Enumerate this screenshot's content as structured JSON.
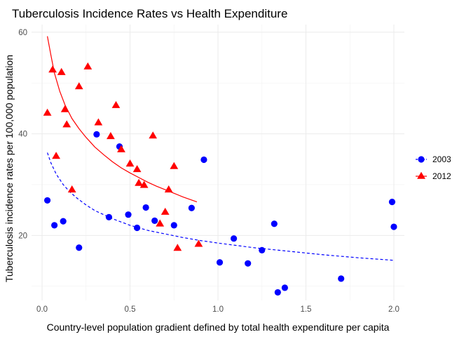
{
  "chart_data": {
    "type": "scatter",
    "title": "Tuberculosis Incidence Rates vs Health Expenditure",
    "xlabel": "Country-level population gradient defined by total health expenditure per capita",
    "ylabel": "Tuberculosis incidence rates per 100,000 population",
    "xlim": [
      -0.06,
      2.06
    ],
    "ylim": [
      7.2,
      61.5
    ],
    "x_ticks": [
      0.0,
      0.5,
      1.0,
      1.5,
      2.0
    ],
    "x_tick_labels": [
      "0.0",
      "0.5",
      "1.0",
      "1.5",
      "2.0"
    ],
    "y_ticks": [
      20,
      40,
      60
    ],
    "y_tick_labels": [
      "20",
      "40",
      "60"
    ],
    "grid": true,
    "legend_position": "right",
    "series": [
      {
        "name": "2003",
        "color": "#0000ff",
        "marker": "circle",
        "line_style": "dashed",
        "points": [
          [
            0.03,
            26.9
          ],
          [
            0.07,
            22.0
          ],
          [
            0.12,
            22.8
          ],
          [
            0.21,
            17.6
          ],
          [
            0.31,
            39.9
          ],
          [
            0.38,
            23.6
          ],
          [
            0.44,
            37.5
          ],
          [
            0.49,
            24.1
          ],
          [
            0.54,
            21.5
          ],
          [
            0.59,
            25.5
          ],
          [
            0.64,
            22.9
          ],
          [
            0.75,
            22.0
          ],
          [
            0.85,
            25.4
          ],
          [
            0.92,
            34.9
          ],
          [
            1.01,
            14.7
          ],
          [
            1.09,
            19.4
          ],
          [
            1.17,
            14.5
          ],
          [
            1.25,
            17.1
          ],
          [
            1.32,
            22.3
          ],
          [
            1.34,
            8.8
          ],
          [
            1.38,
            9.7
          ],
          [
            1.7,
            11.5
          ],
          [
            1.99,
            26.6
          ],
          [
            2.0,
            21.7
          ]
        ],
        "fit": [
          [
            0.03,
            36.3
          ],
          [
            0.05,
            34.3
          ],
          [
            0.08,
            32.1
          ],
          [
            0.12,
            30.0
          ],
          [
            0.16,
            28.5
          ],
          [
            0.2,
            27.3
          ],
          [
            0.25,
            26.0
          ],
          [
            0.3,
            24.9
          ],
          [
            0.4,
            23.3
          ],
          [
            0.5,
            22.0
          ],
          [
            0.6,
            21.0
          ],
          [
            0.7,
            20.3
          ],
          [
            0.8,
            19.6
          ],
          [
            0.9,
            19.0
          ],
          [
            1.0,
            18.5
          ],
          [
            1.2,
            17.6
          ],
          [
            1.4,
            16.9
          ],
          [
            1.6,
            16.2
          ],
          [
            1.8,
            15.6
          ],
          [
            2.0,
            15.1
          ]
        ]
      },
      {
        "name": "2012",
        "color": "#ff0000",
        "marker": "triangle",
        "line_style": "solid",
        "points": [
          [
            0.03,
            44.1
          ],
          [
            0.06,
            52.6
          ],
          [
            0.08,
            35.6
          ],
          [
            0.11,
            52.1
          ],
          [
            0.13,
            44.8
          ],
          [
            0.14,
            41.8
          ],
          [
            0.17,
            29.0
          ],
          [
            0.21,
            49.3
          ],
          [
            0.26,
            53.2
          ],
          [
            0.32,
            42.2
          ],
          [
            0.39,
            39.5
          ],
          [
            0.42,
            45.6
          ],
          [
            0.45,
            36.9
          ],
          [
            0.5,
            34.1
          ],
          [
            0.54,
            33.0
          ],
          [
            0.55,
            30.3
          ],
          [
            0.58,
            29.9
          ],
          [
            0.63,
            39.6
          ],
          [
            0.67,
            22.3
          ],
          [
            0.7,
            24.6
          ],
          [
            0.72,
            29.0
          ],
          [
            0.75,
            33.6
          ],
          [
            0.77,
            17.5
          ],
          [
            0.89,
            18.3
          ]
        ],
        "fit": [
          [
            0.03,
            59.2
          ],
          [
            0.05,
            55.5
          ],
          [
            0.07,
            52.0
          ],
          [
            0.1,
            48.4
          ],
          [
            0.13,
            45.7
          ],
          [
            0.17,
            43.0
          ],
          [
            0.21,
            41.0
          ],
          [
            0.25,
            39.3
          ],
          [
            0.3,
            37.4
          ],
          [
            0.35,
            35.9
          ],
          [
            0.4,
            34.5
          ],
          [
            0.45,
            33.3
          ],
          [
            0.5,
            32.3
          ],
          [
            0.55,
            31.4
          ],
          [
            0.6,
            30.5
          ],
          [
            0.65,
            29.7
          ],
          [
            0.7,
            29.0
          ],
          [
            0.75,
            28.3
          ],
          [
            0.8,
            27.6
          ],
          [
            0.88,
            26.6
          ]
        ]
      }
    ]
  }
}
